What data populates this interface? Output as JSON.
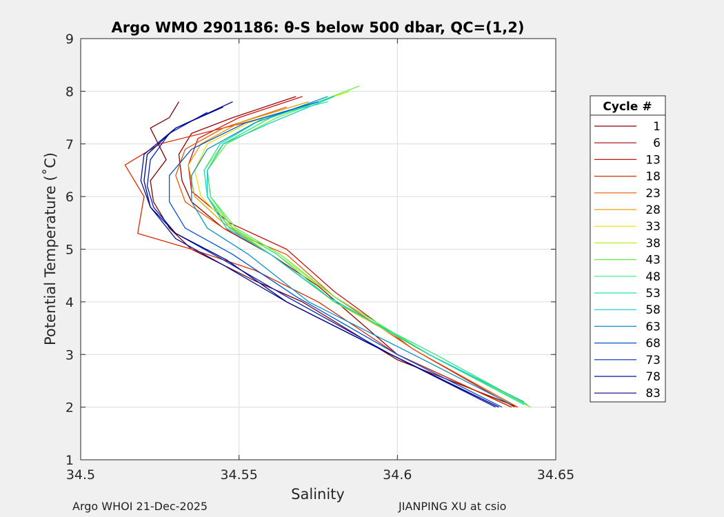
{
  "chart_data": {
    "type": "line",
    "title": "Argo WMO 2901186: θ-S below 500 dbar,  QC=(1,2)",
    "xlabel": "Salinity",
    "ylabel": "Potential Temperature (˚C)",
    "xlim": [
      34.5,
      34.65
    ],
    "ylim": [
      1,
      9
    ],
    "xticks": [
      "34.5",
      "34.55",
      "34.6",
      "34.65"
    ],
    "yticks": [
      "1",
      "2",
      "3",
      "4",
      "5",
      "6",
      "7",
      "8",
      "9"
    ],
    "grid": true,
    "legend": {
      "title": "Cycle #",
      "placement": "outside-right",
      "entries": [
        {
          "label": "1",
          "color": "#800000"
        },
        {
          "label": "6",
          "color": "#a00000"
        },
        {
          "label": "13",
          "color": "#c81010"
        },
        {
          "label": "18",
          "color": "#dc2a00"
        },
        {
          "label": "23",
          "color": "#e85a00"
        },
        {
          "label": "28",
          "color": "#e0a000"
        },
        {
          "label": "33",
          "color": "#f0e000"
        },
        {
          "label": "38",
          "color": "#b4f020"
        },
        {
          "label": "43",
          "color": "#60f040"
        },
        {
          "label": "48",
          "color": "#30e880"
        },
        {
          "label": "53",
          "color": "#20e0b0"
        },
        {
          "label": "58",
          "color": "#10c8d0"
        },
        {
          "label": "63",
          "color": "#0890c8"
        },
        {
          "label": "68",
          "color": "#0050d8"
        },
        {
          "label": "73",
          "color": "#0020c0"
        },
        {
          "label": "78",
          "color": "#0010a0"
        },
        {
          "label": "83",
          "color": "#000080"
        }
      ]
    },
    "series": [
      {
        "name": "1",
        "color": "#800000",
        "points": [
          [
            34.531,
            7.8
          ],
          [
            34.528,
            7.5
          ],
          [
            34.522,
            7.3
          ],
          [
            34.527,
            6.7
          ],
          [
            34.522,
            6.3
          ],
          [
            34.523,
            5.9
          ],
          [
            34.528,
            5.4
          ],
          [
            34.535,
            5.0
          ],
          [
            34.555,
            4.4
          ],
          [
            34.57,
            4.0
          ],
          [
            34.6,
            2.9
          ],
          [
            34.638,
            2.0
          ]
        ]
      },
      {
        "name": "6",
        "color": "#a00000",
        "points": [
          [
            34.568,
            7.9
          ],
          [
            34.548,
            7.5
          ],
          [
            34.535,
            7.2
          ],
          [
            34.531,
            6.8
          ],
          [
            34.532,
            6.3
          ],
          [
            34.535,
            5.9
          ],
          [
            34.545,
            5.4
          ],
          [
            34.56,
            4.9
          ],
          [
            34.575,
            4.3
          ],
          [
            34.6,
            3.0
          ],
          [
            34.636,
            2.0
          ]
        ]
      },
      {
        "name": "13",
        "color": "#c81010",
        "points": [
          [
            34.57,
            7.9
          ],
          [
            34.55,
            7.5
          ],
          [
            34.537,
            7.1
          ],
          [
            34.534,
            6.6
          ],
          [
            34.535,
            6.1
          ],
          [
            34.547,
            5.5
          ],
          [
            34.565,
            5.0
          ],
          [
            34.58,
            4.2
          ],
          [
            34.605,
            3.1
          ],
          [
            34.637,
            2.0
          ]
        ]
      },
      {
        "name": "18",
        "color": "#dc2a00",
        "points": [
          [
            34.565,
            7.6
          ],
          [
            34.545,
            7.3
          ],
          [
            34.525,
            7.0
          ],
          [
            34.514,
            6.6
          ],
          [
            34.52,
            6.0
          ],
          [
            34.518,
            5.3
          ],
          [
            34.535,
            5.0
          ],
          [
            34.555,
            4.6
          ],
          [
            34.575,
            4.0
          ],
          [
            34.6,
            3.0
          ],
          [
            34.636,
            2.0
          ]
        ]
      },
      {
        "name": "23",
        "color": "#e85a00",
        "points": [
          [
            34.565,
            7.7
          ],
          [
            34.545,
            7.3
          ],
          [
            34.533,
            6.9
          ],
          [
            34.53,
            6.4
          ],
          [
            34.533,
            5.9
          ],
          [
            34.545,
            5.4
          ],
          [
            34.565,
            4.9
          ],
          [
            34.58,
            4.1
          ],
          [
            34.605,
            3.1
          ],
          [
            34.638,
            2.0
          ]
        ]
      },
      {
        "name": "28",
        "color": "#e0a000",
        "points": [
          [
            34.572,
            7.8
          ],
          [
            34.55,
            7.4
          ],
          [
            34.538,
            7.0
          ],
          [
            34.534,
            6.6
          ],
          [
            34.536,
            6.0
          ],
          [
            34.545,
            5.5
          ],
          [
            34.56,
            4.9
          ],
          [
            34.58,
            4.0
          ],
          [
            34.61,
            3.0
          ],
          [
            34.64,
            2.05
          ]
        ]
      },
      {
        "name": "33",
        "color": "#f0e000",
        "points": [
          [
            34.575,
            7.8
          ],
          [
            34.553,
            7.4
          ],
          [
            34.54,
            7.0
          ],
          [
            34.536,
            6.5
          ],
          [
            34.538,
            6.0
          ],
          [
            34.546,
            5.5
          ],
          [
            34.56,
            4.9
          ],
          [
            34.58,
            4.0
          ],
          [
            34.61,
            3.0
          ],
          [
            34.641,
            2.05
          ]
        ]
      },
      {
        "name": "38",
        "color": "#b4f020",
        "points": [
          [
            34.585,
            8.0
          ],
          [
            34.56,
            7.5
          ],
          [
            34.545,
            7.0
          ],
          [
            34.539,
            6.5
          ],
          [
            34.54,
            6.0
          ],
          [
            34.548,
            5.4
          ],
          [
            34.562,
            4.9
          ],
          [
            34.58,
            4.1
          ],
          [
            34.61,
            3.0
          ],
          [
            34.642,
            2.0
          ]
        ]
      },
      {
        "name": "43",
        "color": "#60f040",
        "points": [
          [
            34.588,
            8.1
          ],
          [
            34.562,
            7.5
          ],
          [
            34.546,
            7.0
          ],
          [
            34.54,
            6.5
          ],
          [
            34.541,
            6.0
          ],
          [
            34.549,
            5.4
          ],
          [
            34.563,
            4.9
          ],
          [
            34.58,
            4.1
          ],
          [
            34.61,
            3.0
          ],
          [
            34.642,
            2.0
          ]
        ]
      },
      {
        "name": "48",
        "color": "#30e880",
        "points": [
          [
            34.58,
            7.9
          ],
          [
            34.56,
            7.5
          ],
          [
            34.545,
            7.0
          ],
          [
            34.54,
            6.5
          ],
          [
            34.541,
            6.0
          ],
          [
            34.548,
            5.4
          ],
          [
            34.562,
            4.9
          ],
          [
            34.58,
            4.0
          ],
          [
            34.612,
            3.0
          ],
          [
            34.641,
            2.05
          ]
        ]
      },
      {
        "name": "53",
        "color": "#20e0b0",
        "points": [
          [
            34.578,
            7.8
          ],
          [
            34.558,
            7.5
          ],
          [
            34.544,
            7.0
          ],
          [
            34.539,
            6.5
          ],
          [
            34.54,
            6.0
          ],
          [
            34.547,
            5.4
          ],
          [
            34.56,
            4.9
          ],
          [
            34.578,
            4.1
          ],
          [
            34.61,
            3.0
          ],
          [
            34.64,
            2.05
          ]
        ]
      },
      {
        "name": "58",
        "color": "#10c8d0",
        "points": [
          [
            34.58,
            7.9
          ],
          [
            34.56,
            7.4
          ],
          [
            34.545,
            7.0
          ],
          [
            34.54,
            6.5
          ],
          [
            34.54,
            6.0
          ],
          [
            34.546,
            5.4
          ],
          [
            34.56,
            4.9
          ],
          [
            34.578,
            4.1
          ],
          [
            34.61,
            3.0
          ],
          [
            34.64,
            2.1
          ]
        ]
      },
      {
        "name": "63",
        "color": "#0890c8",
        "points": [
          [
            34.578,
            7.9
          ],
          [
            34.555,
            7.4
          ],
          [
            34.54,
            6.9
          ],
          [
            34.535,
            6.4
          ],
          [
            34.535,
            5.9
          ],
          [
            34.54,
            5.4
          ],
          [
            34.553,
            4.9
          ],
          [
            34.572,
            4.0
          ],
          [
            34.605,
            3.0
          ],
          [
            34.636,
            2.05
          ]
        ]
      },
      {
        "name": "68",
        "color": "#0050d8",
        "points": [
          [
            34.575,
            7.8
          ],
          [
            34.552,
            7.4
          ],
          [
            34.535,
            6.9
          ],
          [
            34.528,
            6.4
          ],
          [
            34.528,
            5.9
          ],
          [
            34.533,
            5.4
          ],
          [
            34.548,
            4.9
          ],
          [
            34.568,
            4.1
          ],
          [
            34.6,
            3.0
          ],
          [
            34.633,
            2.0
          ]
        ]
      },
      {
        "name": "73",
        "color": "#0020c0",
        "points": [
          [
            34.54,
            7.6
          ],
          [
            34.528,
            7.2
          ],
          [
            34.522,
            6.7
          ],
          [
            34.521,
            6.2
          ],
          [
            34.523,
            5.8
          ],
          [
            34.53,
            5.3
          ],
          [
            34.545,
            4.8
          ],
          [
            34.565,
            4.1
          ],
          [
            34.598,
            3.0
          ],
          [
            34.632,
            2.0
          ]
        ]
      },
      {
        "name": "78",
        "color": "#0010a0",
        "points": [
          [
            34.548,
            7.8
          ],
          [
            34.53,
            7.3
          ],
          [
            34.52,
            6.8
          ],
          [
            34.519,
            6.3
          ],
          [
            34.522,
            5.8
          ],
          [
            34.53,
            5.2
          ],
          [
            34.545,
            4.7
          ],
          [
            34.565,
            4.0
          ],
          [
            34.598,
            3.0
          ],
          [
            34.631,
            2.0
          ]
        ]
      },
      {
        "name": "83",
        "color": "#000080",
        "points": [
          [
            34.545,
            7.7
          ],
          [
            34.53,
            7.3
          ],
          [
            34.521,
            6.8
          ],
          [
            34.52,
            6.3
          ],
          [
            34.522,
            5.8
          ],
          [
            34.53,
            5.3
          ],
          [
            34.546,
            4.8
          ],
          [
            34.565,
            4.0
          ],
          [
            34.598,
            3.0
          ],
          [
            34.632,
            2.0
          ]
        ]
      }
    ]
  },
  "footer": {
    "left": "Argo WHOI 21-Dec-2025",
    "right": "JIANPING XU at csio"
  }
}
